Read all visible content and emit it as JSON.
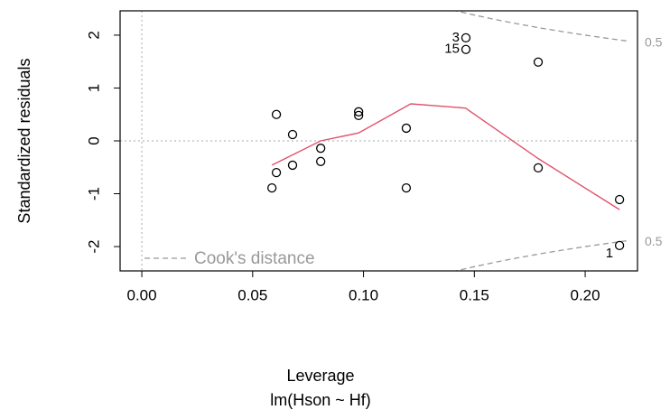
{
  "chart_data": {
    "type": "scatter",
    "x_label": "Leverage",
    "subtitle": "lm(Hson ~ Hf)",
    "y_label": "Standardized residuals",
    "x": [
      0.0587,
      0.0607,
      0.0607,
      0.068,
      0.068,
      0.0807,
      0.0807,
      0.0978,
      0.0978,
      0.1193,
      0.1193,
      0.1462,
      0.1462,
      0.1788,
      0.1788,
      0.2155,
      0.2155
    ],
    "values": [
      -0.89,
      -0.6,
      0.5,
      -0.46,
      0.12,
      -0.14,
      -0.39,
      0.55,
      0.48,
      0.24,
      -0.89,
      1.95,
      1.73,
      1.49,
      -0.51,
      -1.11,
      -1.98
    ],
    "point_labels": [
      null,
      null,
      null,
      null,
      null,
      null,
      null,
      null,
      null,
      null,
      null,
      "3",
      "15",
      null,
      null,
      null,
      "1"
    ],
    "color": "#000000",
    "smooth": {
      "color": "#df536b",
      "x": [
        0.0587,
        0.0807,
        0.0978,
        0.1213,
        0.146,
        0.179,
        0.2155
      ],
      "values": [
        -0.46,
        0,
        0.15,
        0.7,
        0.62,
        -0.34,
        -1.3
      ]
    },
    "cooks": {
      "name": "Cook's distance",
      "level_label": "0.5",
      "color": "#999999",
      "x": [
        0.14,
        0.15,
        0.16,
        0.17,
        0.18,
        0.19,
        0.2,
        0.21,
        0.22
      ],
      "upper": [
        2.478,
        2.38,
        2.291,
        2.21,
        2.134,
        2.065,
        2.0,
        1.94,
        1.883
      ],
      "lower": [
        -2.478,
        -2.38,
        -2.291,
        -2.21,
        -2.134,
        -2.065,
        -2.0,
        -1.94,
        -1.883
      ]
    },
    "xlim": [
      -0.0098,
      0.2236
    ],
    "ylim": [
      -2.46,
      2.46
    ],
    "xticks": [
      {
        "value": 0,
        "label": "0.00"
      },
      {
        "value": 0.05,
        "label": "0.05"
      },
      {
        "value": 0.1,
        "label": "0.10"
      },
      {
        "value": 0.15,
        "label": "0.15"
      },
      {
        "value": 0.2,
        "label": "0.20"
      }
    ],
    "yticks": [
      -2,
      -1,
      0,
      1,
      2
    ]
  }
}
